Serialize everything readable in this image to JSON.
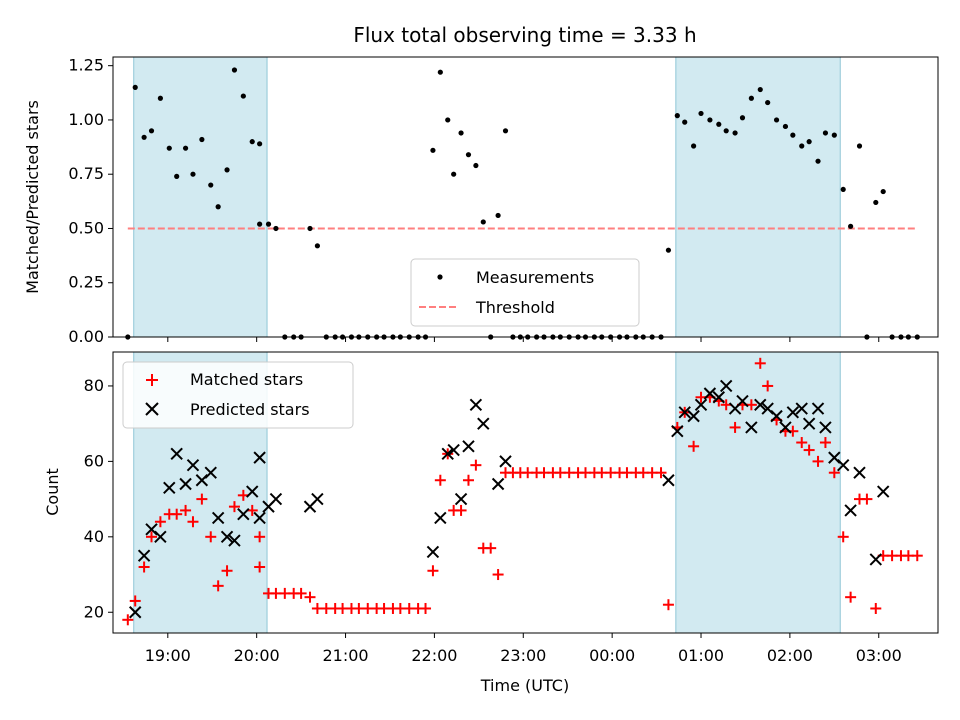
{
  "chart_data": [
    {
      "type": "scatter",
      "title": "Flux total observing time = 3.33 h",
      "ylabel": "Matched/Predicted stars",
      "ylim": [
        0,
        1.29
      ],
      "yticks": [
        "0.00",
        "0.25",
        "0.50",
        "0.75",
        "1.00",
        "1.25"
      ],
      "shaded_spans": [
        [
          "18:37",
          "20:07"
        ],
        [
          "00:43",
          "02:34"
        ]
      ],
      "threshold": {
        "name": "Threshold",
        "value": 0.5,
        "color": "#ff7f7f",
        "style": "dashed"
      },
      "legend": {
        "position": "bottom-center",
        "entries": [
          "Measurements",
          "Threshold"
        ]
      },
      "series": [
        {
          "name": "Measurements",
          "color": "#000000",
          "marker": "dot",
          "points": [
            [
              "18:33",
              0.0
            ],
            [
              "18:38",
              1.15
            ],
            [
              "18:44",
              0.92
            ],
            [
              "18:49",
              0.95
            ],
            [
              "18:55",
              1.1
            ],
            [
              "19:01",
              0.87
            ],
            [
              "19:06",
              0.74
            ],
            [
              "19:12",
              0.87
            ],
            [
              "19:17",
              0.75
            ],
            [
              "19:23",
              0.91
            ],
            [
              "19:29",
              0.7
            ],
            [
              "19:34",
              0.6
            ],
            [
              "19:40",
              0.77
            ],
            [
              "19:45",
              1.23
            ],
            [
              "19:51",
              1.11
            ],
            [
              "19:57",
              0.9
            ],
            [
              "20:02",
              0.89
            ],
            [
              "20:02",
              0.52
            ],
            [
              "20:08",
              0.52
            ],
            [
              "20:13",
              0.5
            ],
            [
              "20:19",
              0.0
            ],
            [
              "20:25",
              0.0
            ],
            [
              "20:30",
              0.0
            ],
            [
              "20:36",
              0.5
            ],
            [
              "20:41",
              0.42
            ],
            [
              "20:47",
              0.0
            ],
            [
              "20:53",
              0.0
            ],
            [
              "20:58",
              0.0
            ],
            [
              "21:04",
              0.0
            ],
            [
              "21:09",
              0.0
            ],
            [
              "21:15",
              0.0
            ],
            [
              "21:21",
              0.0
            ],
            [
              "21:26",
              0.0
            ],
            [
              "21:32",
              0.0
            ],
            [
              "21:37",
              0.0
            ],
            [
              "21:43",
              0.0
            ],
            [
              "21:49",
              0.0
            ],
            [
              "21:54",
              0.0
            ],
            [
              "21:59",
              0.86
            ],
            [
              "22:04",
              1.22
            ],
            [
              "22:09",
              1.0
            ],
            [
              "22:13",
              0.75
            ],
            [
              "22:18",
              0.94
            ],
            [
              "22:23",
              0.84
            ],
            [
              "22:28",
              0.79
            ],
            [
              "22:33",
              0.53
            ],
            [
              "22:38",
              0.0
            ],
            [
              "22:43",
              0.56
            ],
            [
              "22:48",
              0.95
            ],
            [
              "22:53",
              0.0
            ],
            [
              "22:58",
              0.0
            ],
            [
              "23:03",
              0.0
            ],
            [
              "23:09",
              0.0
            ],
            [
              "23:14",
              0.0
            ],
            [
              "23:20",
              0.0
            ],
            [
              "23:25",
              0.0
            ],
            [
              "23:31",
              0.0
            ],
            [
              "23:37",
              0.0
            ],
            [
              "23:42",
              0.0
            ],
            [
              "23:48",
              0.0
            ],
            [
              "23:53",
              0.0
            ],
            [
              "23:59",
              0.0
            ],
            [
              "00:05",
              0.0
            ],
            [
              "00:10",
              0.0
            ],
            [
              "00:16",
              0.0
            ],
            [
              "00:21",
              0.0
            ],
            [
              "00:27",
              0.0
            ],
            [
              "00:33",
              0.0
            ],
            [
              "00:38",
              0.4
            ],
            [
              "00:44",
              1.02
            ],
            [
              "00:49",
              0.99
            ],
            [
              "00:55",
              0.88
            ],
            [
              "01:00",
              1.03
            ],
            [
              "01:06",
              1.0
            ],
            [
              "01:12",
              0.98
            ],
            [
              "01:17",
              0.95
            ],
            [
              "01:23",
              0.94
            ],
            [
              "01:28",
              1.01
            ],
            [
              "01:34",
              1.1
            ],
            [
              "01:40",
              1.14
            ],
            [
              "01:45",
              1.08
            ],
            [
              "01:51",
              1.0
            ],
            [
              "01:57",
              0.97
            ],
            [
              "02:02",
              0.93
            ],
            [
              "02:08",
              0.88
            ],
            [
              "02:13",
              0.9
            ],
            [
              "02:19",
              0.81
            ],
            [
              "02:24",
              0.94
            ],
            [
              "02:30",
              0.93
            ],
            [
              "02:36",
              0.68
            ],
            [
              "02:41",
              0.51
            ],
            [
              "02:47",
              0.88
            ],
            [
              "02:52",
              0.0
            ],
            [
              "02:58",
              0.62
            ],
            [
              "03:03",
              0.67
            ],
            [
              "03:09",
              0.0
            ],
            [
              "03:15",
              0.0
            ],
            [
              "03:20",
              0.0
            ],
            [
              "03:26",
              0.0
            ]
          ]
        }
      ]
    },
    {
      "type": "scatter",
      "xlabel": "Time (UTC)",
      "ylabel": "Count",
      "ylim": [
        14.5,
        89
      ],
      "yticks": [
        "20",
        "40",
        "60",
        "80"
      ],
      "xticks": [
        "19:00",
        "20:00",
        "21:00",
        "22:00",
        "23:00",
        "00:00",
        "01:00",
        "02:00",
        "03:00"
      ],
      "xlim": [
        "18:23",
        "03:40"
      ],
      "shaded_spans": [
        [
          "18:37",
          "20:07"
        ],
        [
          "00:43",
          "02:34"
        ]
      ],
      "legend": {
        "position": "top-left",
        "entries": [
          "Matched stars",
          "Predicted stars"
        ]
      },
      "series": [
        {
          "name": "Matched stars",
          "color": "#ff0000",
          "marker": "plus",
          "points": [
            [
              "18:33",
              18
            ],
            [
              "18:38",
              23
            ],
            [
              "18:44",
              32
            ],
            [
              "18:49",
              40
            ],
            [
              "18:55",
              44
            ],
            [
              "19:01",
              46
            ],
            [
              "19:06",
              46
            ],
            [
              "19:12",
              47
            ],
            [
              "19:17",
              44
            ],
            [
              "19:23",
              50
            ],
            [
              "19:29",
              40
            ],
            [
              "19:34",
              27
            ],
            [
              "19:40",
              31
            ],
            [
              "19:45",
              48
            ],
            [
              "19:51",
              51
            ],
            [
              "19:57",
              47
            ],
            [
              "20:02",
              40
            ],
            [
              "20:02",
              32
            ],
            [
              "20:08",
              25
            ],
            [
              "20:13",
              25
            ],
            [
              "20:19",
              25
            ],
            [
              "20:25",
              25
            ],
            [
              "20:30",
              25
            ],
            [
              "20:36",
              24
            ],
            [
              "20:41",
              21
            ],
            [
              "20:47",
              21
            ],
            [
              "20:53",
              21
            ],
            [
              "20:58",
              21
            ],
            [
              "21:04",
              21
            ],
            [
              "21:09",
              21
            ],
            [
              "21:15",
              21
            ],
            [
              "21:21",
              21
            ],
            [
              "21:26",
              21
            ],
            [
              "21:32",
              21
            ],
            [
              "21:37",
              21
            ],
            [
              "21:43",
              21
            ],
            [
              "21:49",
              21
            ],
            [
              "21:54",
              21
            ],
            [
              "21:59",
              31
            ],
            [
              "22:04",
              55
            ],
            [
              "22:09",
              62
            ],
            [
              "22:13",
              47
            ],
            [
              "22:18",
              47
            ],
            [
              "22:23",
              55
            ],
            [
              "22:28",
              59
            ],
            [
              "22:33",
              37
            ],
            [
              "22:38",
              37
            ],
            [
              "22:43",
              30
            ],
            [
              "22:48",
              57
            ],
            [
              "22:53",
              57
            ],
            [
              "22:58",
              57
            ],
            [
              "23:03",
              57
            ],
            [
              "23:09",
              57
            ],
            [
              "23:14",
              57
            ],
            [
              "23:20",
              57
            ],
            [
              "23:25",
              57
            ],
            [
              "23:31",
              57
            ],
            [
              "23:37",
              57
            ],
            [
              "23:42",
              57
            ],
            [
              "23:48",
              57
            ],
            [
              "23:53",
              57
            ],
            [
              "23:59",
              57
            ],
            [
              "00:05",
              57
            ],
            [
              "00:10",
              57
            ],
            [
              "00:16",
              57
            ],
            [
              "00:21",
              57
            ],
            [
              "00:27",
              57
            ],
            [
              "00:33",
              57
            ],
            [
              "00:38",
              22
            ],
            [
              "00:44",
              69
            ],
            [
              "00:49",
              73
            ],
            [
              "00:55",
              64
            ],
            [
              "01:00",
              77
            ],
            [
              "01:06",
              77
            ],
            [
              "01:12",
              76
            ],
            [
              "01:17",
              75
            ],
            [
              "01:23",
              69
            ],
            [
              "01:28",
              75
            ],
            [
              "01:34",
              75
            ],
            [
              "01:40",
              86
            ],
            [
              "01:45",
              80
            ],
            [
              "01:51",
              71
            ],
            [
              "01:57",
              68
            ],
            [
              "02:02",
              68
            ],
            [
              "02:08",
              65
            ],
            [
              "02:13",
              63
            ],
            [
              "02:19",
              60
            ],
            [
              "02:24",
              65
            ],
            [
              "02:30",
              57
            ],
            [
              "02:36",
              40
            ],
            [
              "02:41",
              24
            ],
            [
              "02:47",
              50
            ],
            [
              "02:52",
              50
            ],
            [
              "02:58",
              21
            ],
            [
              "03:03",
              35
            ],
            [
              "03:09",
              35
            ],
            [
              "03:15",
              35
            ],
            [
              "03:20",
              35
            ],
            [
              "03:26",
              35
            ]
          ]
        },
        {
          "name": "Predicted stars",
          "color": "#000000",
          "marker": "x",
          "points": [
            [
              "18:38",
              20
            ],
            [
              "18:44",
              35
            ],
            [
              "18:49",
              42
            ],
            [
              "18:55",
              40
            ],
            [
              "19:01",
              53
            ],
            [
              "19:06",
              62
            ],
            [
              "19:12",
              54
            ],
            [
              "19:17",
              59
            ],
            [
              "19:23",
              55
            ],
            [
              "19:29",
              57
            ],
            [
              "19:34",
              45
            ],
            [
              "19:40",
              40
            ],
            [
              "19:45",
              39
            ],
            [
              "19:51",
              46
            ],
            [
              "19:57",
              52
            ],
            [
              "20:02",
              45
            ],
            [
              "20:02",
              61
            ],
            [
              "20:08",
              48
            ],
            [
              "20:13",
              50
            ],
            [
              "20:36",
              48
            ],
            [
              "20:41",
              50
            ],
            [
              "21:59",
              36
            ],
            [
              "22:04",
              45
            ],
            [
              "22:09",
              62
            ],
            [
              "22:13",
              63
            ],
            [
              "22:18",
              50
            ],
            [
              "22:23",
              64
            ],
            [
              "22:28",
              75
            ],
            [
              "22:33",
              70
            ],
            [
              "22:43",
              54
            ],
            [
              "22:48",
              60
            ],
            [
              "00:38",
              55
            ],
            [
              "00:44",
              68
            ],
            [
              "00:49",
              73
            ],
            [
              "00:55",
              72
            ],
            [
              "01:00",
              75
            ],
            [
              "01:06",
              78
            ],
            [
              "01:12",
              77
            ],
            [
              "01:17",
              80
            ],
            [
              "01:23",
              74
            ],
            [
              "01:28",
              76
            ],
            [
              "01:34",
              69
            ],
            [
              "01:40",
              75
            ],
            [
              "01:45",
              74
            ],
            [
              "01:51",
              72
            ],
            [
              "01:57",
              69
            ],
            [
              "02:02",
              73
            ],
            [
              "02:08",
              74
            ],
            [
              "02:13",
              70
            ],
            [
              "02:19",
              74
            ],
            [
              "02:24",
              69
            ],
            [
              "02:30",
              61
            ],
            [
              "02:36",
              59
            ],
            [
              "02:41",
              47
            ],
            [
              "02:47",
              57
            ],
            [
              "02:58",
              34
            ],
            [
              "03:03",
              52
            ]
          ]
        }
      ]
    }
  ],
  "colors": {
    "shade": "#add8e6",
    "shade_edge": "#8fc6d6",
    "threshold": "#ff7f7f",
    "matched": "#ff0000",
    "predicted": "#000000",
    "measurements": "#000000"
  }
}
